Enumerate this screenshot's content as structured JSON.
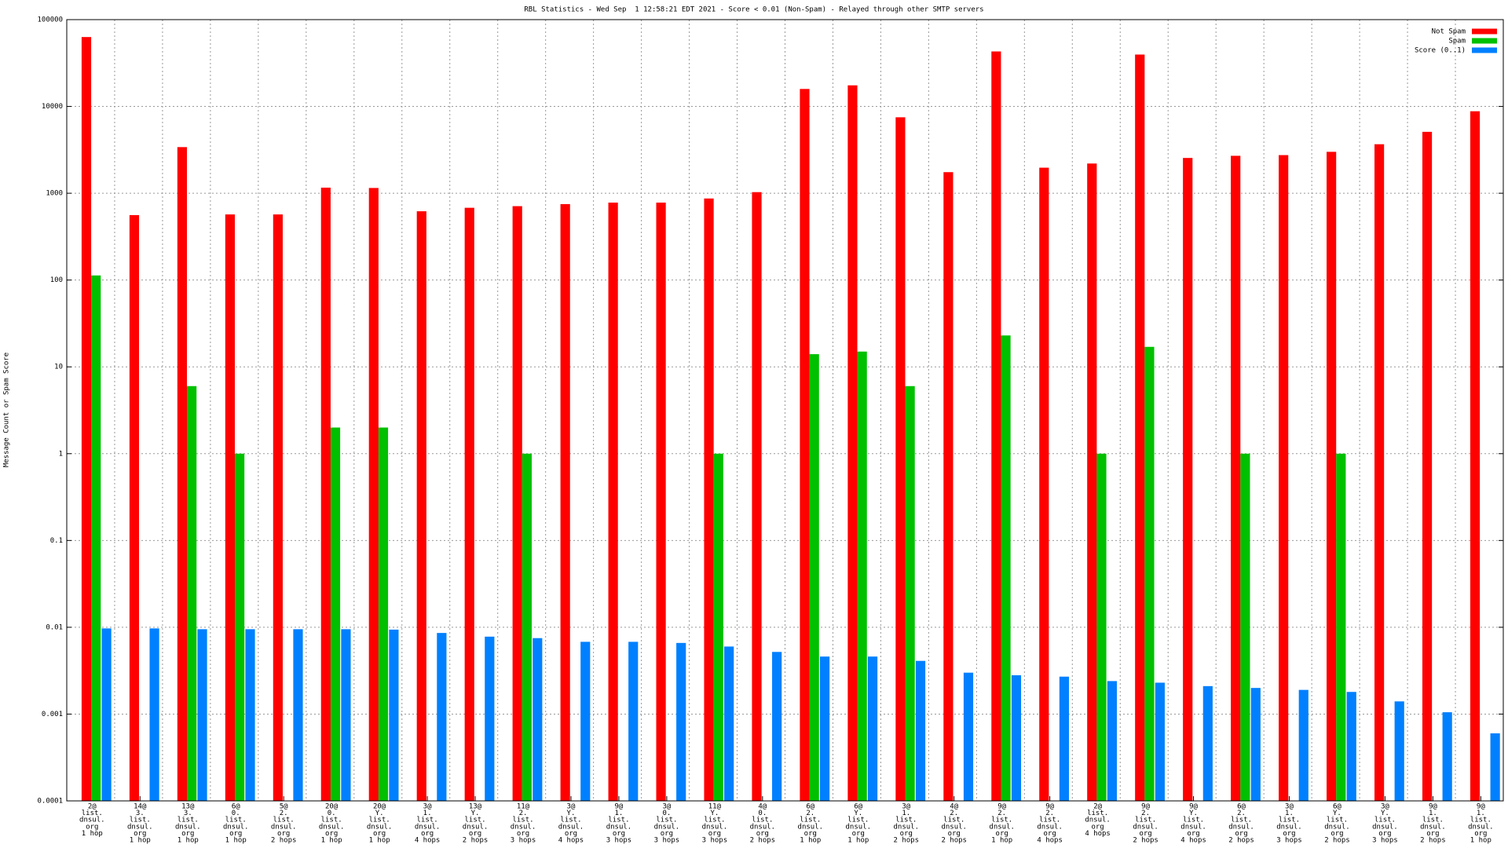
{
  "chart_data": {
    "type": "bar",
    "title": "RBL Statistics - Wed Sep  1 12:58:21 EDT 2021 - Score < 0.01 (Non-Spam) - Relayed through other SMTP servers",
    "y_label": "Message Count or Spam Score",
    "log_scale": true,
    "grid": true,
    "legend": "top-right",
    "ylim": [
      0.0001,
      100000
    ],
    "yticks": [
      0.0001,
      0.001,
      0.01,
      0.1,
      1,
      10,
      100,
      1000,
      10000,
      100000
    ],
    "categories": [
      [
        "2@",
        "list.",
        "dnsul.",
        "org",
        "1 hop"
      ],
      [
        "14@",
        "3.",
        "list.",
        "dnsul.",
        "org",
        "1 hop"
      ],
      [
        "13@",
        "3.",
        "list.",
        "dnsul.",
        "org",
        "1 hop"
      ],
      [
        "6@",
        "0.",
        "list.",
        "dnsul.",
        "org",
        "1 hop"
      ],
      [
        "5@",
        "2.",
        "list.",
        "dnsul.",
        "org",
        "2 hops"
      ],
      [
        "20@",
        "0.",
        "list.",
        "dnsul.",
        "org",
        "1 hop"
      ],
      [
        "20@",
        "Y.",
        "list.",
        "dnsul.",
        "org",
        "1 hop"
      ],
      [
        "3@",
        "1.",
        "list.",
        "dnsul.",
        "org",
        "4 hops"
      ],
      [
        "13@",
        "Y.",
        "list.",
        "dnsul.",
        "org",
        "2 hops"
      ],
      [
        "11@",
        "2.",
        "list.",
        "dnsul.",
        "org",
        "3 hops"
      ],
      [
        "3@",
        "Y.",
        "list.",
        "dnsul.",
        "org",
        "4 hops"
      ],
      [
        "9@",
        "1.",
        "list.",
        "dnsul.",
        "org",
        "3 hops"
      ],
      [
        "3@",
        "0.",
        "list.",
        "dnsul.",
        "org",
        "3 hops"
      ],
      [
        "11@",
        "Y.",
        "list.",
        "dnsul.",
        "org",
        "3 hops"
      ],
      [
        "4@",
        "0.",
        "list.",
        "dnsul.",
        "org",
        "2 hops"
      ],
      [
        "6@",
        "2.",
        "list.",
        "dnsul.",
        "org",
        "1 hop"
      ],
      [
        "6@",
        "Y.",
        "list.",
        "dnsul.",
        "org",
        "1 hop"
      ],
      [
        "3@",
        "1.",
        "list.",
        "dnsul.",
        "org",
        "2 hops"
      ],
      [
        "4@",
        "2.",
        "list.",
        "dnsul.",
        "org",
        "2 hops"
      ],
      [
        "9@",
        "2.",
        "list.",
        "dnsul.",
        "org",
        "1 hop"
      ],
      [
        "9@",
        "2.",
        "list.",
        "dnsul.",
        "org",
        "4 hops"
      ],
      [
        "2@",
        "list.",
        "dnsul.",
        "org",
        "4 hops"
      ],
      [
        "9@",
        "2.",
        "list.",
        "dnsul.",
        "org",
        "2 hops"
      ],
      [
        "9@",
        "Y.",
        "list.",
        "dnsul.",
        "org",
        "4 hops"
      ],
      [
        "6@",
        "2.",
        "list.",
        "dnsul.",
        "org",
        "2 hops"
      ],
      [
        "3@",
        "1.",
        "list.",
        "dnsul.",
        "org",
        "3 hops"
      ],
      [
        "6@",
        "Y.",
        "list.",
        "dnsul.",
        "org",
        "2 hops"
      ],
      [
        "3@",
        "Y.",
        "list.",
        "dnsul.",
        "org",
        "3 hops"
      ],
      [
        "9@",
        "1.",
        "list.",
        "dnsul.",
        "org",
        "2 hops"
      ],
      [
        "9@",
        "1.",
        "list.",
        "dnsul.",
        "org",
        "1 hop"
      ]
    ],
    "series": [
      {
        "name": "Not Spam",
        "color": "#ff0000",
        "values": [
          63000,
          560,
          3400,
          570,
          570,
          1160,
          1150,
          620,
          680,
          710,
          750,
          780,
          780,
          870,
          1030,
          15900,
          17500,
          7500,
          1750,
          43000,
          1970,
          2200,
          39600,
          2550,
          2700,
          2750,
          3000,
          3670,
          5100,
          8800
        ]
      },
      {
        "name": "Spam",
        "color": "#00c000",
        "values": [
          113,
          null,
          6,
          1,
          null,
          2,
          2,
          null,
          null,
          1,
          null,
          null,
          null,
          1,
          null,
          14,
          15,
          6,
          null,
          23,
          null,
          1,
          17,
          null,
          1,
          null,
          1,
          null,
          null,
          null
        ]
      },
      {
        "name": "Score (0..1)",
        "color": "#0080ff",
        "values": [
          0.0097,
          0.0097,
          0.0095,
          0.0095,
          0.0095,
          0.0095,
          0.0094,
          0.0086,
          0.0078,
          0.0075,
          0.0068,
          0.0068,
          0.0066,
          0.006,
          0.0052,
          0.0046,
          0.0046,
          0.0041,
          0.003,
          0.0028,
          0.0027,
          0.0024,
          0.0023,
          0.0021,
          0.002,
          0.0019,
          0.0018,
          0.0014,
          0.00105,
          0.0006
        ]
      }
    ]
  }
}
